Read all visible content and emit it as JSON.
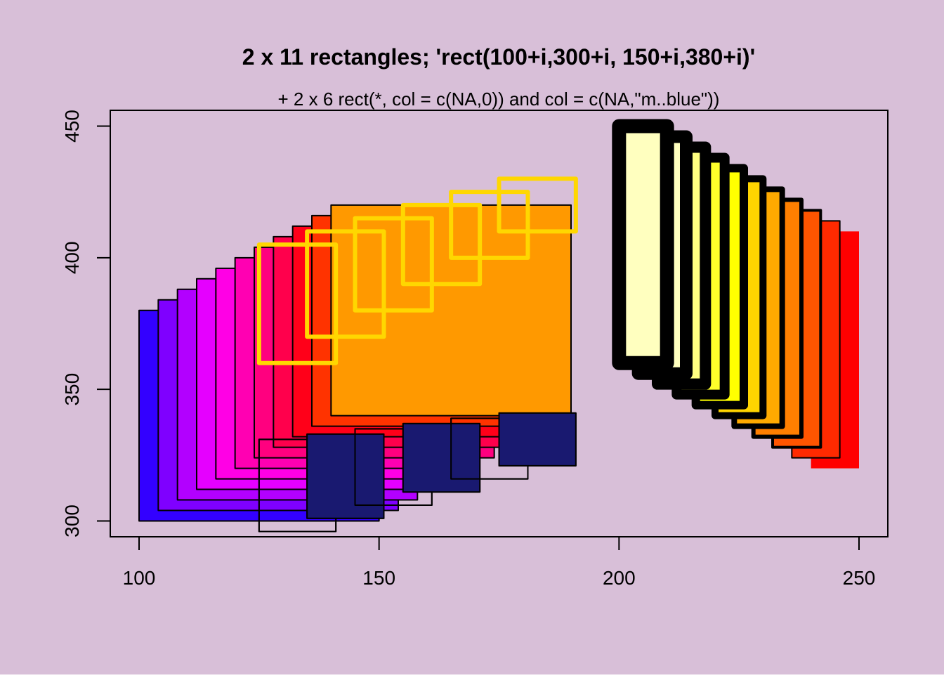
{
  "background_color": "#d8bfd8",
  "chart_data": {
    "type": "rect",
    "title": "2 x 11 rectangles; 'rect(100+i,300+i,  150+i,380+i)'",
    "subtitle": "+  2 x 6 rect(*, col = c(NA,0)) and  col = c(NA,\"m..blue\"))",
    "xlabel": "",
    "ylabel": "",
    "xlim": [
      94,
      256
    ],
    "ylim": [
      294,
      456
    ],
    "x_ticks": [
      100,
      150,
      200,
      250
    ],
    "y_ticks": [
      300,
      350,
      400,
      450
    ],
    "x_tick_labels": [
      "100",
      "150",
      "200",
      "250"
    ],
    "y_tick_labels": [
      "300",
      "350",
      "400",
      "450"
    ],
    "grid": false,
    "rect_groups": [
      {
        "description_visible": false,
        "fills": [
          "#3300ff",
          "#7f00ff",
          "#b200ff",
          "#e500ff",
          "#ff00e5",
          "#ff00b2",
          "#ff007f",
          "#ff004c",
          "#ff0019",
          "#ff3300",
          "#ff9900"
        ],
        "border_color": "#000000",
        "border_width": 1,
        "rects": [
          [
            100,
            300,
            150,
            380
          ],
          [
            104,
            304,
            154,
            384
          ],
          [
            108,
            308,
            158,
            388
          ],
          [
            112,
            312,
            162,
            392
          ],
          [
            116,
            316,
            166,
            396
          ],
          [
            120,
            320,
            170,
            400
          ],
          [
            124,
            324,
            174,
            404
          ],
          [
            128,
            328,
            178,
            408
          ],
          [
            132,
            332,
            182,
            412
          ],
          [
            136,
            336,
            186,
            416
          ],
          [
            140,
            340,
            190,
            420
          ]
        ]
      },
      {
        "fills": [
          "#ff0000",
          "#ff2a00",
          "#ff5500",
          "#ff7f00",
          "#ffaa00",
          "#ffd400",
          "#ffff00",
          "#ffff2a",
          "#ffff80",
          "#ffffbf",
          "#ffffbf"
        ],
        "border_color": "#000000",
        "border_widths": [
          0,
          1,
          2,
          3,
          4,
          5,
          6,
          7,
          8,
          9,
          10
        ],
        "rects": [
          [
            240,
            320,
            250,
            410
          ],
          [
            236,
            324,
            246,
            414
          ],
          [
            232,
            328,
            242,
            418
          ],
          [
            228,
            332,
            238,
            422
          ],
          [
            224,
            336,
            234,
            426
          ],
          [
            220,
            340,
            230,
            430
          ],
          [
            216,
            344,
            226,
            434
          ],
          [
            212,
            348,
            222,
            438
          ],
          [
            208,
            352,
            218,
            442
          ],
          [
            204,
            356,
            214,
            446
          ],
          [
            200,
            360,
            210,
            450
          ]
        ]
      },
      {
        "fill": "none",
        "border_color": "#000000",
        "border_width": 1,
        "rects": [
          [
            125,
            296,
            141,
            331
          ],
          [
            135,
            301,
            151,
            333
          ],
          [
            145,
            306,
            161,
            335
          ],
          [
            155,
            311,
            171,
            337
          ],
          [
            165,
            316,
            181,
            339
          ],
          [
            175,
            321,
            191,
            341
          ]
        ]
      },
      {
        "fills": [
          "none",
          "#191970",
          "none",
          "#191970",
          "none",
          "#191970"
        ],
        "border_color": "#000000",
        "border_width": 1,
        "rects": [
          [
            125,
            296,
            141,
            331
          ],
          [
            135,
            301,
            151,
            333
          ],
          [
            145,
            306,
            161,
            335
          ],
          [
            155,
            311,
            171,
            337
          ],
          [
            165,
            316,
            181,
            339
          ],
          [
            175,
            321,
            191,
            341
          ]
        ]
      },
      {
        "fill": "none",
        "border_color": "#ffd700",
        "border_width": 3,
        "rects": [
          [
            125,
            360,
            141,
            405
          ],
          [
            135,
            370,
            151,
            410
          ],
          [
            145,
            380,
            161,
            415
          ],
          [
            155,
            390,
            171,
            420
          ],
          [
            165,
            400,
            181,
            425
          ],
          [
            175,
            410,
            191,
            430
          ]
        ]
      }
    ]
  }
}
